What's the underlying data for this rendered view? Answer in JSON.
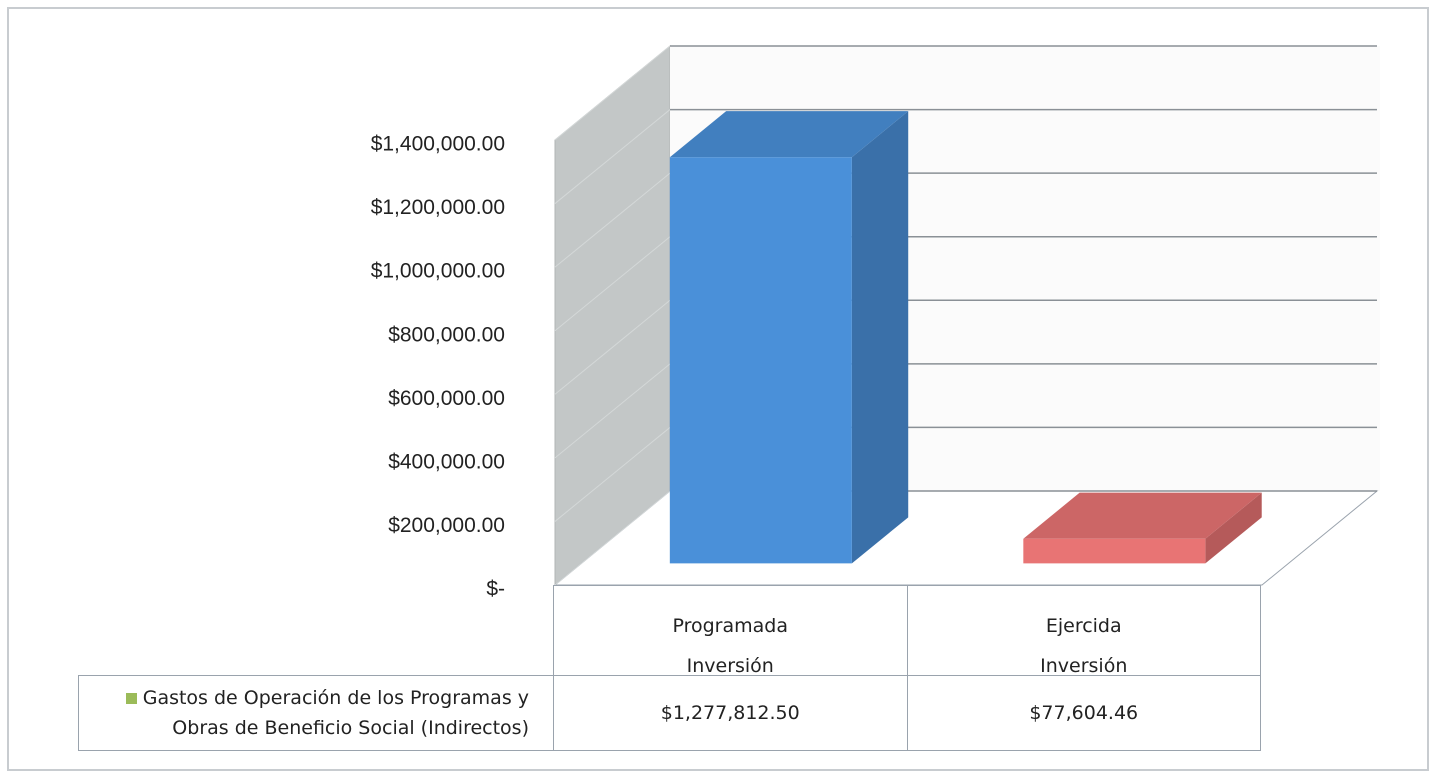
{
  "chart_data": {
    "type": "bar3d",
    "categories": [
      "Programada\nInversión",
      "Ejercida\nInversión"
    ],
    "series": [
      {
        "name": "Gastos de Operación de los Programas y Obras de Beneficio Social (Indirectos)",
        "color": "#9bbb59",
        "values": [
          1277812.5,
          77604.46
        ],
        "value_labels": [
          "$1,277,812.50",
          "$77,604.46"
        ],
        "point_colors": [
          "#4a90d9",
          "#e87474"
        ]
      }
    ],
    "ylim": [
      0,
      1400000
    ],
    "yticks": [
      {
        "value": 0,
        "label": "$-"
      },
      {
        "value": 200000,
        "label": "$200,000.00"
      },
      {
        "value": 400000,
        "label": "$400,000.00"
      },
      {
        "value": 600000,
        "label": "$600,000.00"
      },
      {
        "value": 800000,
        "label": "$800,000.00"
      },
      {
        "value": 1000000,
        "label": "$1,000,000.00"
      },
      {
        "value": 1200000,
        "label": "$1,200,000.00"
      },
      {
        "value": 1400000,
        "label": "$1,400,000.00"
      }
    ],
    "grid": true
  }
}
